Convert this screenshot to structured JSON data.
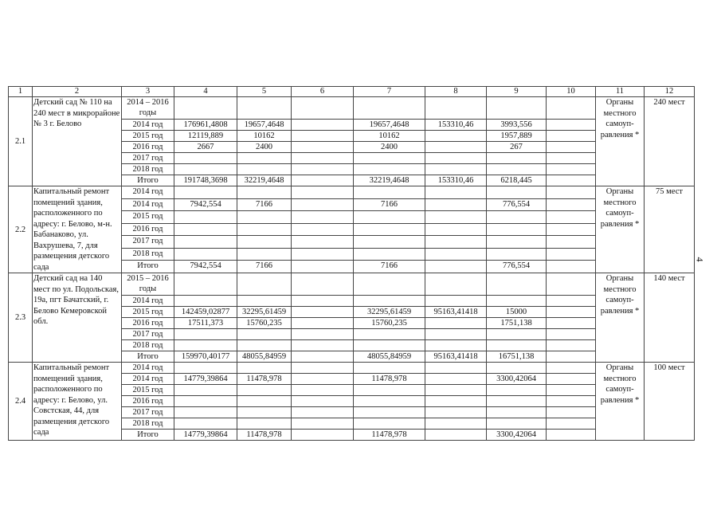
{
  "page_number": "4",
  "header": [
    "1",
    "2",
    "3",
    "4",
    "5",
    "6",
    "7",
    "8",
    "9",
    "10",
    "11",
    "12"
  ],
  "blocks": [
    {
      "num": "2.1",
      "name": "Детский сад № 110 на 240 мест в микрорайоне № 3 г. Белово",
      "org": "Органы местного самоуп-равления *",
      "result": "240 мест",
      "rows": [
        {
          "period": "2014 – 2016 годы",
          "v": [
            "",
            "",
            "",
            "",
            "",
            "",
            ""
          ]
        },
        {
          "period": "2014 год",
          "v": [
            "176961,4808",
            "19657,4648",
            "",
            "19657,4648",
            "153310,46",
            "3993,556",
            ""
          ]
        },
        {
          "period": "2015 год",
          "v": [
            "12119,889",
            "10162",
            "",
            "10162",
            "",
            "1957,889",
            ""
          ]
        },
        {
          "period": "2016 год",
          "v": [
            "2667",
            "2400",
            "",
            "2400",
            "",
            "267",
            ""
          ]
        },
        {
          "period": "2017 год",
          "v": [
            "",
            "",
            "",
            "",
            "",
            "",
            ""
          ]
        },
        {
          "period": "2018 год",
          "v": [
            "",
            "",
            "",
            "",
            "",
            "",
            ""
          ]
        },
        {
          "period": "Итого",
          "v": [
            "191748,3698",
            "32219,4648",
            "",
            "32219,4648",
            "153310,46",
            "6218,445",
            ""
          ]
        }
      ]
    },
    {
      "num": "2.2",
      "name": "Капитальный ремонт помещений здания, расположенного по адресу: г. Белово, м-н. Бабанаково, ул. Вахрушева, 7, для размещения детского сада",
      "org": "Органы местного самоуп-равления *",
      "result": "75 мест",
      "rows": [
        {
          "period": "2014 год",
          "v": [
            "",
            "",
            "",
            "",
            "",
            "",
            ""
          ]
        },
        {
          "period": "2014 год",
          "v": [
            "7942,554",
            "7166",
            "",
            "7166",
            "",
            "776,554",
            ""
          ]
        },
        {
          "period": "2015 год",
          "v": [
            "",
            "",
            "",
            "",
            "",
            "",
            ""
          ]
        },
        {
          "period": "2016 год",
          "v": [
            "",
            "",
            "",
            "",
            "",
            "",
            ""
          ]
        },
        {
          "period": "2017 год",
          "v": [
            "",
            "",
            "",
            "",
            "",
            "",
            ""
          ]
        },
        {
          "period": "2018 год",
          "v": [
            "",
            "",
            "",
            "",
            "",
            "",
            ""
          ]
        },
        {
          "period": "Итого",
          "v": [
            "7942,554",
            "7166",
            "",
            "7166",
            "",
            "776,554",
            ""
          ]
        }
      ]
    },
    {
      "num": "2.3",
      "name": "Детский сад на 140 мест по ул. Подольская, 19а, пгт Бачатский, г. Белово Кемеровской обл.",
      "org": "Органы местного самоуп-равления *",
      "result": "140 мест",
      "rows": [
        {
          "period": "2015 – 2016 годы",
          "v": [
            "",
            "",
            "",
            "",
            "",
            "",
            ""
          ]
        },
        {
          "period": "2014 год",
          "v": [
            "",
            "",
            "",
            "",
            "",
            "",
            ""
          ]
        },
        {
          "period": "2015 год",
          "v": [
            "142459,02877",
            "32295,61459",
            "",
            "32295,61459",
            "95163,41418",
            "15000",
            ""
          ]
        },
        {
          "period": "2016 год",
          "v": [
            "17511,373",
            "15760,235",
            "",
            "15760,235",
            "",
            "1751,138",
            ""
          ]
        },
        {
          "period": "2017 год",
          "v": [
            "",
            "",
            "",
            "",
            "",
            "",
            ""
          ]
        },
        {
          "period": "2018 год",
          "v": [
            "",
            "",
            "",
            "",
            "",
            "",
            ""
          ]
        },
        {
          "period": "Итого",
          "v": [
            "159970,40177",
            "48055,84959",
            "",
            "48055,84959",
            "95163,41418",
            "16751,138",
            ""
          ]
        }
      ]
    },
    {
      "num": "2.4",
      "name": "Капитальный ремонт помещений здания, расположенного по адресу: г. Белово, ул. Совстская, 44, для размещения детского сада",
      "org": "Органы местного самоуп-равления *",
      "result": "100 мест",
      "rows": [
        {
          "period": "2014 год",
          "v": [
            "",
            "",
            "",
            "",
            "",
            "",
            ""
          ]
        },
        {
          "period": "2014 год",
          "v": [
            "14779,39864",
            "11478,978",
            "",
            "11478,978",
            "",
            "3300,42064",
            ""
          ]
        },
        {
          "period": "2015 год",
          "v": [
            "",
            "",
            "",
            "",
            "",
            "",
            ""
          ]
        },
        {
          "period": "2016 год",
          "v": [
            "",
            "",
            "",
            "",
            "",
            "",
            ""
          ]
        },
        {
          "period": "2017 год",
          "v": [
            "",
            "",
            "",
            "",
            "",
            "",
            ""
          ]
        },
        {
          "period": "2018 год",
          "v": [
            "",
            "",
            "",
            "",
            "",
            "",
            ""
          ]
        },
        {
          "period": "Итого",
          "v": [
            "14779,39864",
            "11478,978",
            "",
            "11478,978",
            "",
            "3300,42064",
            ""
          ]
        }
      ]
    }
  ]
}
